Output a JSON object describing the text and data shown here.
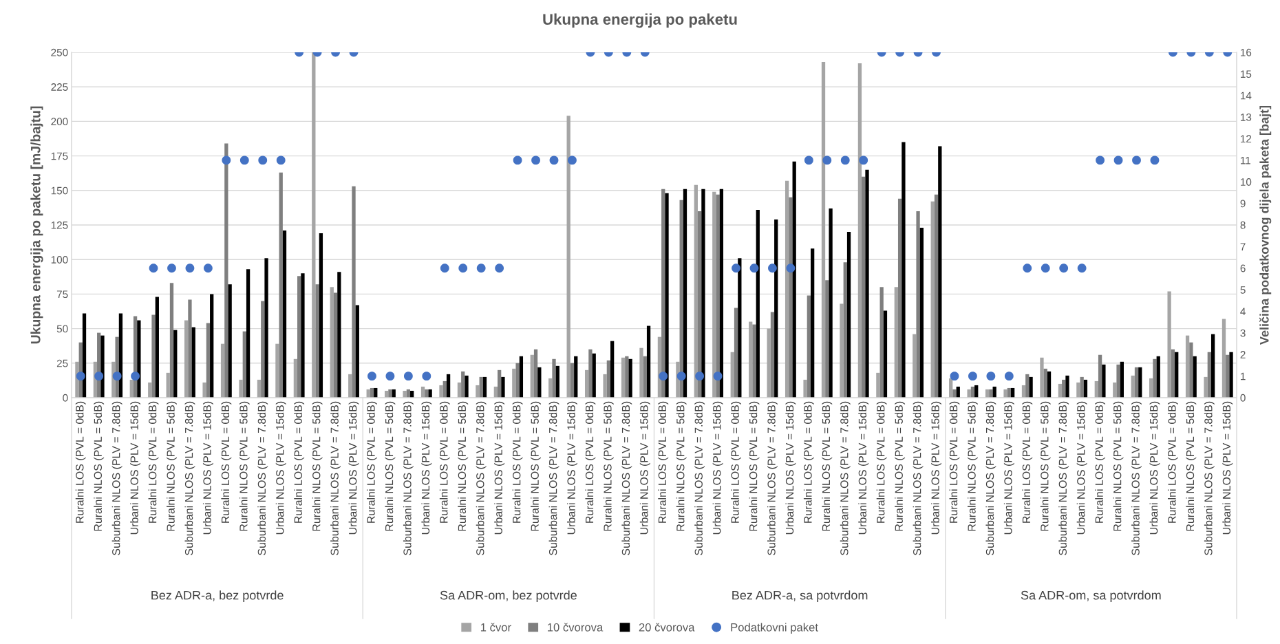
{
  "chart_data": {
    "type": "bar",
    "title": "Ukupna energija po paketu",
    "ylabel": "Ukupna energija po paketu [mJ/bajtu]",
    "y2label": "Veličina podatkovnog dijela paketa [bajt]",
    "categories": [
      "Ruralni LOS (PVL = 0dB)",
      "Ruralni NLOS (PVL = 5dB)",
      "Suburbani NLOS (PLV = 7.8dB)",
      "Urbani NLOS (PLV = 15dB)",
      "Ruralni LOS (PVL = 0dB)",
      "Ruralni NLOS (PVL = 5dB)",
      "Suburbani NLOS (PLV = 7.8dB)",
      "Urbani NLOS (PLV = 15dB)",
      "Ruralni LOS (PVL = 0dB)",
      "Ruralni NLOS (PVL = 5dB)",
      "Suburbani NLOS (PLV = 7.8dB)",
      "Urbani NLOS (PLV = 15dB)",
      "Ruralni LOS (PVL = 0dB)",
      "Ruralni NLOS (PVL = 5dB)",
      "Suburbani NLOS (PLV = 7.8dB)",
      "Urbani NLOS (PLV = 15dB)",
      "Ruralni LOS (PVL = 0dB)",
      "Ruralni NLOS (PVL = 5dB)",
      "Suburbani NLOS (PLV = 7.8dB)",
      "Urbani NLOS (PLV = 15dB)",
      "Ruralni LOS (PVL = 0dB)",
      "Ruralni NLOS (PVL = 5dB)",
      "Suburbani NLOS (PLV = 7.8dB)",
      "Urbani NLOS (PLV = 15dB)",
      "Ruralni LOS (PVL = 0dB)",
      "Ruralni NLOS (PVL = 5dB)",
      "Suburbani NLOS (PLV = 7.8dB)",
      "Urbani NLOS (PLV = 15dB)",
      "Ruralni LOS (PVL = 0dB)",
      "Ruralni NLOS (PVL = 5dB)",
      "Suburbani NLOS (PLV = 7.8dB)",
      "Urbani NLOS (PLV = 15dB)",
      "Ruralni LOS (PVL = 0dB)",
      "Ruralni NLOS (PVL = 5dB)",
      "Suburbani NLOS (PLV = 7.8dB)",
      "Urbani NLOS (PLV = 15dB)",
      "Ruralni LOS (PVL = 0dB)",
      "Ruralni NLOS (PVL = 5dB)",
      "Suburbani NLOS (PLV = 7.8dB)",
      "Urbani NLOS (PLV = 15dB)",
      "Ruralni LOS (PVL = 0dB)",
      "Ruralni NLOS (PVL = 5dB)",
      "Suburbani NLOS (PLV = 7.8dB)",
      "Urbani NLOS (PLV = 15dB)",
      "Ruralni LOS (PVL = 0dB)",
      "Ruralni NLOS (PVL = 5dB)",
      "Suburbani NLOS (PLV = 7.8dB)",
      "Urbani NLOS (PLV = 15dB)",
      "Ruralni LOS (PVL = 0dB)",
      "Ruralni NLOS (PVL = 5dB)",
      "Suburbani NLOS (PLV = 7.8dB)",
      "Urbani NLOS (PLV = 15dB)",
      "Ruralni LOS (PVL = 0dB)",
      "Ruralni NLOS (PVL = 5dB)",
      "Suburbani NLOS (PLV = 7.8dB)",
      "Urbani NLOS (PLV = 15dB)",
      "Ruralni LOS (PVL = 0dB)",
      "Ruralni NLOS (PVL = 5dB)",
      "Suburbani NLOS (PLV = 7.8dB)",
      "Urbani NLOS (PLV = 15dB)",
      "Ruralni LOS (PVL = 0dB)",
      "Ruralni NLOS (PVL = 5dB)",
      "Suburbani NLOS (PLV = 7.8dB)",
      "Urbani NLOS (PLV = 15dB)"
    ],
    "series": [
      {
        "name": "1 čvor",
        "color": "#a5a5a5",
        "values": [
          26,
          26,
          26,
          13,
          11,
          18,
          56,
          11,
          39,
          13,
          13,
          39,
          28,
          250,
          80,
          17,
          6,
          5,
          5,
          8,
          9,
          11,
          9,
          8,
          21,
          31,
          14,
          204,
          20,
          17,
          29,
          36,
          44,
          26,
          154,
          149,
          33,
          55,
          50,
          157,
          13,
          243,
          68,
          242,
          18,
          80,
          46,
          142,
          14,
          6,
          6,
          6,
          9,
          29,
          10,
          11,
          12,
          11,
          16,
          14,
          77,
          45,
          15,
          57
        ]
      },
      {
        "name": "10 čvorova",
        "color": "#7f7f7f",
        "values": [
          40,
          47,
          44,
          59,
          60,
          83,
          71,
          54,
          184,
          48,
          70,
          163,
          88,
          82,
          76,
          153,
          7,
          6,
          6,
          6,
          12,
          19,
          15,
          20,
          25,
          35,
          28,
          25,
          35,
          27,
          30,
          30,
          151,
          143,
          135,
          147,
          65,
          53,
          62,
          145,
          74,
          85,
          98,
          160,
          80,
          144,
          135,
          147,
          6,
          8,
          6,
          7,
          17,
          21,
          13,
          15,
          31,
          24,
          22,
          28,
          35,
          40,
          33,
          31
        ]
      },
      {
        "name": "20 čvorova",
        "color": "#000000",
        "values": [
          61,
          45,
          61,
          56,
          73,
          49,
          51,
          75,
          82,
          93,
          101,
          121,
          90,
          119,
          91,
          67,
          7,
          6,
          5,
          6,
          17,
          16,
          15,
          15,
          30,
          22,
          23,
          30,
          32,
          41,
          28,
          52,
          148,
          151,
          151,
          151,
          101,
          136,
          129,
          171,
          108,
          137,
          120,
          165,
          63,
          185,
          123,
          182,
          8,
          9,
          8,
          7,
          15,
          19,
          16,
          13,
          24,
          26,
          22,
          30,
          33,
          30,
          46,
          33
        ]
      },
      {
        "name": "Podatkovni paket",
        "type": "scatter",
        "axis": "y2",
        "color": "#4472c4",
        "marker": "circle",
        "values": [
          1,
          1,
          1,
          1,
          6,
          6,
          6,
          6,
          11,
          11,
          11,
          11,
          16,
          16,
          16,
          16,
          1,
          1,
          1,
          1,
          6,
          6,
          6,
          6,
          11,
          11,
          11,
          11,
          16,
          16,
          16,
          16,
          1,
          1,
          1,
          1,
          6,
          6,
          6,
          6,
          11,
          11,
          11,
          11,
          16,
          16,
          16,
          16,
          1,
          1,
          1,
          1,
          6,
          6,
          6,
          6,
          11,
          11,
          11,
          11,
          16,
          16,
          16,
          16
        ]
      }
    ],
    "ylim": [
      0,
      250
    ],
    "yticks": [
      0,
      25,
      50,
      75,
      100,
      125,
      150,
      175,
      200,
      225,
      250
    ],
    "y2lim": [
      0,
      16
    ],
    "y2ticks": [
      0,
      1,
      2,
      3,
      4,
      5,
      6,
      7,
      8,
      9,
      10,
      11,
      12,
      13,
      14,
      15,
      16
    ],
    "grid": "y",
    "legend": "bottom",
    "annotations": [
      "Bez ADR-a, bez potvrde",
      "Sa ADR-om, bez potvrde",
      "Bez ADR-a, sa potvrdom",
      "Sa ADR-om, sa potvrdom"
    ]
  }
}
